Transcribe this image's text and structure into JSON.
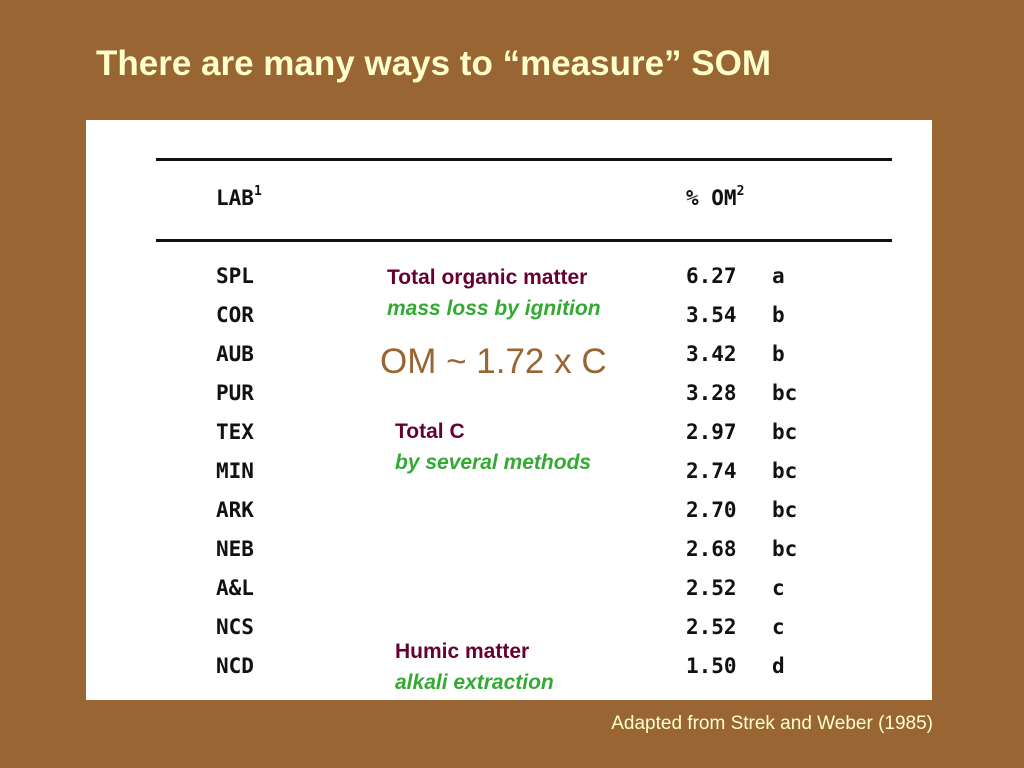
{
  "title": "There are many ways to “measure” SOM",
  "table": {
    "header": {
      "lab": "LAB",
      "lab_footnote": "1",
      "om": "% OM",
      "om_footnote": "2"
    },
    "rows": [
      {
        "lab": "SPL",
        "om": "6.27",
        "group": "a"
      },
      {
        "lab": "COR",
        "om": "3.54",
        "group": "b"
      },
      {
        "lab": "AUB",
        "om": "3.42",
        "group": "b"
      },
      {
        "lab": "PUR",
        "om": "3.28",
        "group": "bc"
      },
      {
        "lab": "TEX",
        "om": "2.97",
        "group": "bc"
      },
      {
        "lab": "MIN",
        "om": "2.74",
        "group": "bc"
      },
      {
        "lab": "ARK",
        "om": "2.70",
        "group": "bc"
      },
      {
        "lab": "NEB",
        "om": "2.68",
        "group": "bc"
      },
      {
        "lab": "A&L",
        "om": "2.52",
        "group": "c"
      },
      {
        "lab": "NCS",
        "om": "2.52",
        "group": "c"
      },
      {
        "lab": "NCD",
        "om": "1.50",
        "group": "d"
      }
    ]
  },
  "annotations": {
    "total_om": {
      "heading": "Total organic matter",
      "method": "mass loss by ignition"
    },
    "formula": "OM ~ 1.72 x C",
    "total_c": {
      "heading": "Total C",
      "method": "by several methods"
    },
    "humic": {
      "heading": "Humic matter",
      "method": "alkali extraction"
    }
  },
  "source": "Adapted from Strek and Weber (1985)",
  "colors": {
    "background": "#996633",
    "title": "#ffffcc",
    "annotation_heading": "#660033",
    "annotation_method": "#33aa33",
    "formula": "#996633"
  }
}
